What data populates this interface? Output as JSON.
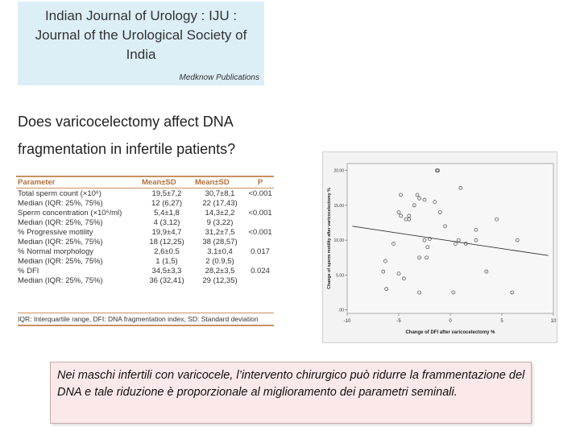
{
  "journal": {
    "title_lines": [
      "Indian Journal of Urology : IJU :",
      "Journal of the Urological Society of",
      "India"
    ],
    "publisher": "Medknow Publications"
  },
  "article": {
    "title_lines": [
      "Does varicocelectomy affect DNA",
      "fragmentation in infertile patients?"
    ]
  },
  "table": {
    "headers": [
      "Parameter",
      "Mean±SD",
      "Mean±SD",
      "P"
    ],
    "rows": [
      {
        "cells": [
          "Total sperm count (×10⁶)",
          "19,5±7,2",
          "30,7±8,1",
          "<0.001"
        ]
      },
      {
        "cells": [
          "Median (IQR: 25%, 75%)",
          "12 (6,27)",
          "22 (17,43)",
          ""
        ]
      },
      {
        "cells": [
          "Sperm concentration (×10⁶/ml)",
          "5,4±1,8",
          "14,3±2,2",
          "<0.001"
        ]
      },
      {
        "cells": [
          "Median (IQR: 25%, 75%)",
          "4 (3,12)",
          "9 (3,22)",
          ""
        ]
      },
      {
        "cells": [
          "% Progressive motility",
          "19,9±4,7",
          "31,2±7,5",
          "<0.001"
        ]
      },
      {
        "cells": [
          "Median (IQR: 25%, 75%)",
          "18 (12,25)",
          "38 (28,57)",
          ""
        ]
      },
      {
        "cells": [
          "% Normal morphology",
          "2,6±0.5",
          "3,1±0,4",
          "0.017"
        ]
      },
      {
        "cells": [
          "Median (IQR: 25%, 75%)",
          "1 (1,5)",
          "2 (0.9,5)",
          ""
        ]
      },
      {
        "cells": [
          "% DFI",
          "34,5±3,3",
          "28,2±3,5",
          "0.024"
        ]
      },
      {
        "cells": [
          "Median (IQR: 25%, 75%)",
          "36 (32,41)",
          "29 (12,35)",
          ""
        ]
      }
    ],
    "footnote": "IQR: Interquartile range, DFI: DNA fragmentation index, SD: Standard deviation"
  },
  "chart_data": {
    "type": "scatter",
    "xlabel": "Change of DFI after varicocelectomy %",
    "ylabel": "Change of sperm motility after varicocelectomy %",
    "x_ticks": [
      "-10",
      "-5",
      "0",
      "5",
      "10"
    ],
    "y_ticks": [
      "20.00",
      "15.00",
      "10.00",
      "5.00",
      ".00"
    ],
    "xlim": [
      -10,
      10
    ],
    "ylim": [
      -0.5,
      21
    ],
    "grid": false,
    "points": [
      {
        "x": -6.3,
        "y": 7.0
      },
      {
        "x": -6.5,
        "y": 5.5
      },
      {
        "x": -6.2,
        "y": 3.0
      },
      {
        "x": -5.5,
        "y": 9.5
      },
      {
        "x": -5.0,
        "y": 5.2
      },
      {
        "x": -4.8,
        "y": 16.5
      },
      {
        "x": -5.0,
        "y": 14.0
      },
      {
        "x": -4.8,
        "y": 13.5
      },
      {
        "x": -4.5,
        "y": 4.5
      },
      {
        "x": -3.5,
        "y": 15.0
      },
      {
        "x": -3.2,
        "y": 16.5
      },
      {
        "x": -3.0,
        "y": 16.0
      },
      {
        "x": -4.0,
        "y": 13.5
      },
      {
        "x": -4.3,
        "y": 13.0
      },
      {
        "x": -2.5,
        "y": 15.8
      },
      {
        "x": -1.5,
        "y": 15.5
      },
      {
        "x": -0.5,
        "y": 12.0
      },
      {
        "x": -1.0,
        "y": 14.0
      },
      {
        "x": -3.0,
        "y": 7.5
      },
      {
        "x": -3.0,
        "y": 2.5
      },
      {
        "x": -2.5,
        "y": 10.0
      },
      {
        "x": -2.0,
        "y": 10.2
      },
      {
        "x": -2.2,
        "y": 9.0
      },
      {
        "x": -2.3,
        "y": 7.5
      },
      {
        "x": -1.3,
        "y": 20.0
      },
      {
        "x": -1.2,
        "y": 20.0
      },
      {
        "x": 0.8,
        "y": 10.0
      },
      {
        "x": 1.0,
        "y": 17.5
      },
      {
        "x": 0.3,
        "y": 2.5
      },
      {
        "x": 0.5,
        "y": 9.5
      },
      {
        "x": 2.5,
        "y": 11.5
      },
      {
        "x": 2.5,
        "y": 10.0
      },
      {
        "x": 3.5,
        "y": 5.5
      },
      {
        "x": 4.5,
        "y": 13.0
      },
      {
        "x": 6.0,
        "y": 2.5
      },
      {
        "x": 6.5,
        "y": 10.0
      },
      {
        "x": -4.0,
        "y": 13.0
      },
      {
        "x": 1.5,
        "y": 9.5
      }
    ],
    "trendline": {
      "x1": -9.5,
      "y1": 12.0,
      "x2": 9.5,
      "y2": 7.8
    }
  },
  "caption": {
    "text": "Nei maschi infertili con varicocele, l’intervento chirurgico può ridurre la frammentazione del DNA e tale riduzione è proporzionale al miglioramento dei parametri seminali."
  }
}
